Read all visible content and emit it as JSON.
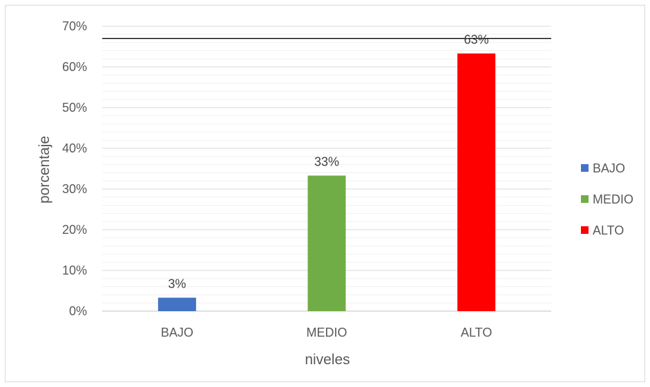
{
  "chart_data": {
    "type": "bar",
    "title": "",
    "xlabel": "niveles",
    "ylabel": "porcentaje",
    "categories": [
      "BAJO",
      "MEDIO",
      "ALTO"
    ],
    "values": [
      3.3,
      33.3,
      63.3
    ],
    "data_labels": [
      "3%",
      "33%",
      "63%"
    ],
    "colors": [
      "#4472c4",
      "#70ad47",
      "#ff0000"
    ],
    "ylim": [
      0,
      70
    ],
    "yticks": [
      0,
      10,
      20,
      30,
      40,
      50,
      60,
      70
    ],
    "ytick_labels": [
      "0%",
      "10%",
      "20%",
      "30%",
      "40%",
      "50%",
      "60%",
      "70%"
    ],
    "minor_gridlines": true,
    "reference_line": 67,
    "legend": {
      "position": "right",
      "entries": [
        "BAJO",
        "MEDIO",
        "ALTO"
      ]
    }
  }
}
